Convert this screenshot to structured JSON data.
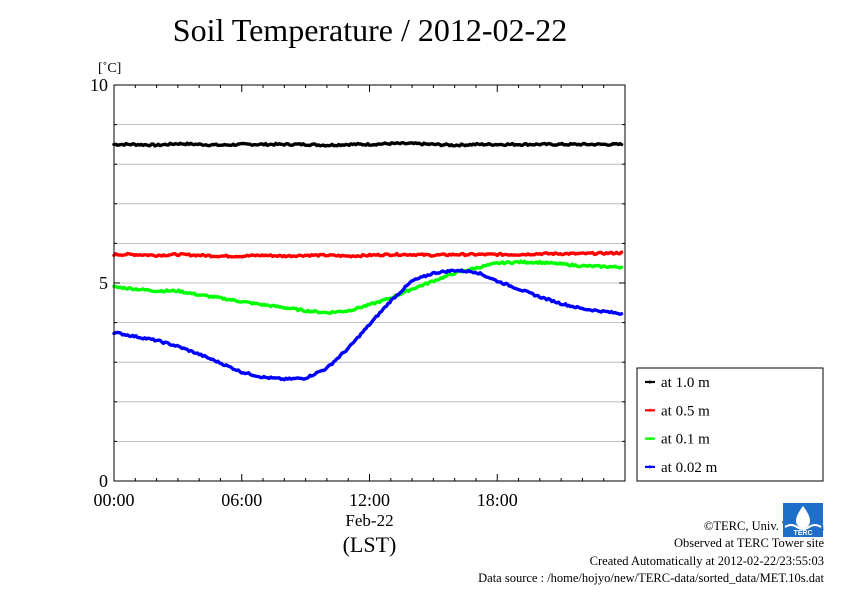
{
  "title": "Soil Temperature / 2012-02-22",
  "footer": {
    "copyright": "©TERC, Univ. Tsukuba",
    "observed": "Observed at TERC Tower site",
    "created": "Created Automatically at 2012-02-22/23:55:03",
    "source": "Data source : /home/hojyo/new/TERC-data/sorted_data/MET.10s.dat",
    "logo_text": "TERC"
  },
  "chart_data": {
    "type": "line",
    "ylabel": "[˚C]",
    "ylim": [
      0,
      10
    ],
    "y_ticks": [
      "0",
      "5",
      "10"
    ],
    "xlim": [
      0,
      24
    ],
    "x_ticks": [
      {
        "value": 0,
        "label": "00:00"
      },
      {
        "value": 6,
        "label": "06:00"
      },
      {
        "value": 12,
        "label": "12:00"
      },
      {
        "value": 18,
        "label": "18:00"
      }
    ],
    "x_date_label": "Feb-22",
    "xlabel": "(LST)",
    "grid": true,
    "legend_position": "right",
    "series": [
      {
        "name": "at 1.0 m",
        "color": "#000000",
        "x": [
          0,
          1,
          2,
          3,
          4,
          5,
          6,
          7,
          8,
          9,
          10,
          11,
          12,
          13,
          14,
          15,
          16,
          17,
          18,
          19,
          20,
          21,
          22,
          23.9
        ],
        "y": [
          8.5,
          8.5,
          8.48,
          8.52,
          8.5,
          8.48,
          8.5,
          8.5,
          8.5,
          8.5,
          8.48,
          8.5,
          8.5,
          8.52,
          8.52,
          8.5,
          8.48,
          8.5,
          8.5,
          8.5,
          8.5,
          8.5,
          8.5,
          8.5
        ]
      },
      {
        "name": "at 0.5 m",
        "color": "#ff0000",
        "x": [
          0,
          1,
          2,
          3,
          4,
          5,
          6,
          7,
          8,
          9,
          10,
          11,
          12,
          13,
          14,
          15,
          16,
          17,
          18,
          19,
          20,
          21,
          22,
          23.9
        ],
        "y": [
          5.72,
          5.72,
          5.7,
          5.72,
          5.7,
          5.68,
          5.68,
          5.7,
          5.68,
          5.7,
          5.7,
          5.68,
          5.7,
          5.72,
          5.72,
          5.7,
          5.72,
          5.72,
          5.72,
          5.72,
          5.74,
          5.74,
          5.74,
          5.76
        ]
      },
      {
        "name": "at 0.1 m",
        "color": "#00ff00",
        "x": [
          0,
          1,
          2,
          3,
          4,
          5,
          6,
          7,
          8,
          9,
          10,
          11,
          12,
          13,
          14,
          15,
          16,
          17,
          18,
          19,
          20,
          21,
          22,
          23.9
        ],
        "y": [
          4.9,
          4.85,
          4.8,
          4.8,
          4.7,
          4.62,
          4.53,
          4.45,
          4.38,
          4.3,
          4.25,
          4.3,
          4.45,
          4.62,
          4.85,
          5.05,
          5.25,
          5.38,
          5.5,
          5.53,
          5.52,
          5.48,
          5.43,
          5.4
        ]
      },
      {
        "name": "at 0.02 m",
        "color": "#0000ff",
        "x": [
          0,
          1,
          2,
          3,
          4,
          5,
          6,
          7,
          8,
          9,
          10,
          11,
          12,
          13,
          14,
          15,
          16,
          17,
          18,
          19,
          20,
          21,
          22,
          23.9
        ],
        "y": [
          3.75,
          3.65,
          3.55,
          3.4,
          3.2,
          2.98,
          2.75,
          2.62,
          2.57,
          2.6,
          2.85,
          3.35,
          3.95,
          4.55,
          5.05,
          5.25,
          5.32,
          5.28,
          5.05,
          4.85,
          4.65,
          4.48,
          4.35,
          4.22
        ]
      }
    ]
  }
}
